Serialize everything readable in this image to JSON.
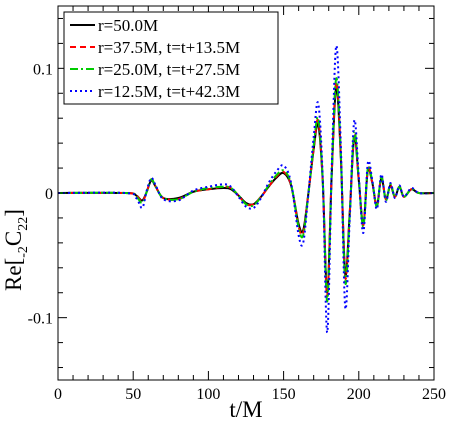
{
  "chart_data": {
    "type": "line",
    "xlabel": "t/M",
    "ylabel_main": "Re[",
    "ylabel_sub1": "-2",
    "ylabel_mid": "C",
    "ylabel_sub2": "22",
    "ylabel_close": "]",
    "xlim": [
      0,
      250
    ],
    "ylim": [
      -0.15,
      0.15
    ],
    "xticks": [
      0,
      50,
      100,
      150,
      200,
      250
    ],
    "yticks": [
      0.1,
      0,
      -0.1
    ],
    "ytick_labels": [
      "0.1",
      "0",
      "-0.1"
    ],
    "grid": false,
    "legend_position": "top-left",
    "series": [
      {
        "name": "r=50.0M",
        "color": "#000000",
        "dash": "solid",
        "x": [
          0,
          45,
          52,
          56,
          59,
          62,
          65,
          70,
          80,
          90,
          100,
          110,
          115,
          120,
          125,
          130,
          135,
          140,
          145,
          150,
          155,
          160,
          163,
          166,
          170,
          173,
          176,
          179,
          182,
          185,
          188,
          191,
          194,
          197,
          200,
          203,
          206,
          209,
          212,
          215,
          218,
          221,
          224,
          227,
          230,
          235,
          240,
          250
        ],
        "y": [
          0,
          0,
          -0.002,
          -0.006,
          0.001,
          0.01,
          0.005,
          -0.004,
          -0.004,
          0.001,
          0.003,
          0.004,
          0.003,
          -0.002,
          -0.008,
          -0.009,
          -0.003,
          0.005,
          0.012,
          0.016,
          0.006,
          -0.025,
          -0.03,
          -0.005,
          0.035,
          0.055,
          0.01,
          -0.08,
          0.015,
          0.085,
          0.03,
          -0.065,
          -0.015,
          0.045,
          0.01,
          -0.025,
          0.018,
          0.008,
          -0.01,
          0.012,
          -0.005,
          0.006,
          -0.003,
          0.005,
          -0.003,
          0.003,
          0,
          0
        ]
      },
      {
        "name": "r=37.5M, t=t+13.5M",
        "color": "#ff0000",
        "dash": "6,4",
        "x": [
          0,
          45,
          52,
          56,
          59,
          62,
          65,
          70,
          80,
          90,
          100,
          110,
          115,
          120,
          125,
          130,
          135,
          140,
          145,
          150,
          155,
          160,
          163,
          166,
          170,
          173,
          176,
          179,
          182,
          185,
          188,
          191,
          194,
          197,
          200,
          203,
          206,
          209,
          212,
          215,
          218,
          221,
          224,
          227,
          230,
          235,
          240,
          250
        ],
        "y": [
          0,
          0,
          -0.002,
          -0.007,
          0.001,
          0.011,
          0.005,
          -0.004,
          -0.005,
          0.001,
          0.003,
          0.005,
          0.004,
          -0.002,
          -0.009,
          -0.009,
          -0.003,
          0.005,
          0.013,
          0.017,
          0.006,
          -0.027,
          -0.032,
          -0.005,
          0.036,
          0.058,
          0.01,
          -0.083,
          0.016,
          0.089,
          0.032,
          -0.068,
          -0.016,
          0.047,
          0.01,
          -0.026,
          0.019,
          0.008,
          -0.011,
          0.013,
          -0.005,
          0.006,
          -0.003,
          0.005,
          -0.003,
          0.003,
          0,
          0
        ]
      },
      {
        "name": "r=25.0M, t=t+27.5M",
        "color": "#00cc00",
        "dash": "8,3,2,3",
        "x": [
          0,
          45,
          52,
          56,
          59,
          62,
          65,
          70,
          80,
          90,
          100,
          110,
          115,
          120,
          125,
          130,
          135,
          140,
          145,
          150,
          155,
          160,
          163,
          166,
          170,
          173,
          176,
          179,
          182,
          185,
          188,
          191,
          194,
          197,
          200,
          203,
          206,
          209,
          212,
          215,
          218,
          221,
          224,
          227,
          230,
          235,
          240,
          250
        ],
        "y": [
          0,
          0,
          -0.003,
          -0.008,
          0.001,
          0.011,
          0.005,
          -0.004,
          -0.005,
          0.001,
          0.004,
          0.005,
          0.004,
          -0.002,
          -0.009,
          -0.01,
          -0.003,
          0.006,
          0.014,
          0.018,
          0.007,
          -0.028,
          -0.034,
          -0.006,
          0.038,
          0.06,
          0.011,
          -0.087,
          0.017,
          0.092,
          0.033,
          -0.072,
          -0.017,
          0.049,
          0.011,
          -0.027,
          0.02,
          0.009,
          -0.011,
          0.013,
          -0.006,
          0.007,
          -0.003,
          0.005,
          -0.003,
          0.003,
          0,
          0
        ]
      },
      {
        "name": "r=12.5M, t=t+42.3M",
        "color": "#0000ff",
        "dash": "2,3",
        "x": [
          0,
          45,
          52,
          56,
          59,
          62,
          65,
          70,
          80,
          90,
          100,
          110,
          115,
          120,
          125,
          130,
          135,
          140,
          145,
          150,
          155,
          160,
          163,
          166,
          170,
          173,
          176,
          179,
          182,
          185,
          188,
          191,
          194,
          197,
          200,
          203,
          206,
          209,
          212,
          215,
          218,
          221,
          224,
          227,
          230,
          235,
          240,
          250
        ],
        "y": [
          0,
          0,
          -0.004,
          -0.012,
          0.002,
          0.012,
          0.006,
          -0.005,
          -0.006,
          0.002,
          0.005,
          0.007,
          0.005,
          -0.003,
          -0.011,
          -0.012,
          -0.004,
          0.008,
          0.017,
          0.022,
          0.008,
          -0.034,
          -0.04,
          -0.007,
          0.045,
          0.072,
          0.013,
          -0.112,
          0.02,
          0.118,
          0.04,
          -0.092,
          -0.02,
          0.058,
          0.013,
          -0.032,
          0.024,
          0.01,
          -0.013,
          0.015,
          -0.007,
          0.008,
          -0.004,
          0.006,
          -0.003,
          0.004,
          0,
          0
        ]
      }
    ]
  }
}
